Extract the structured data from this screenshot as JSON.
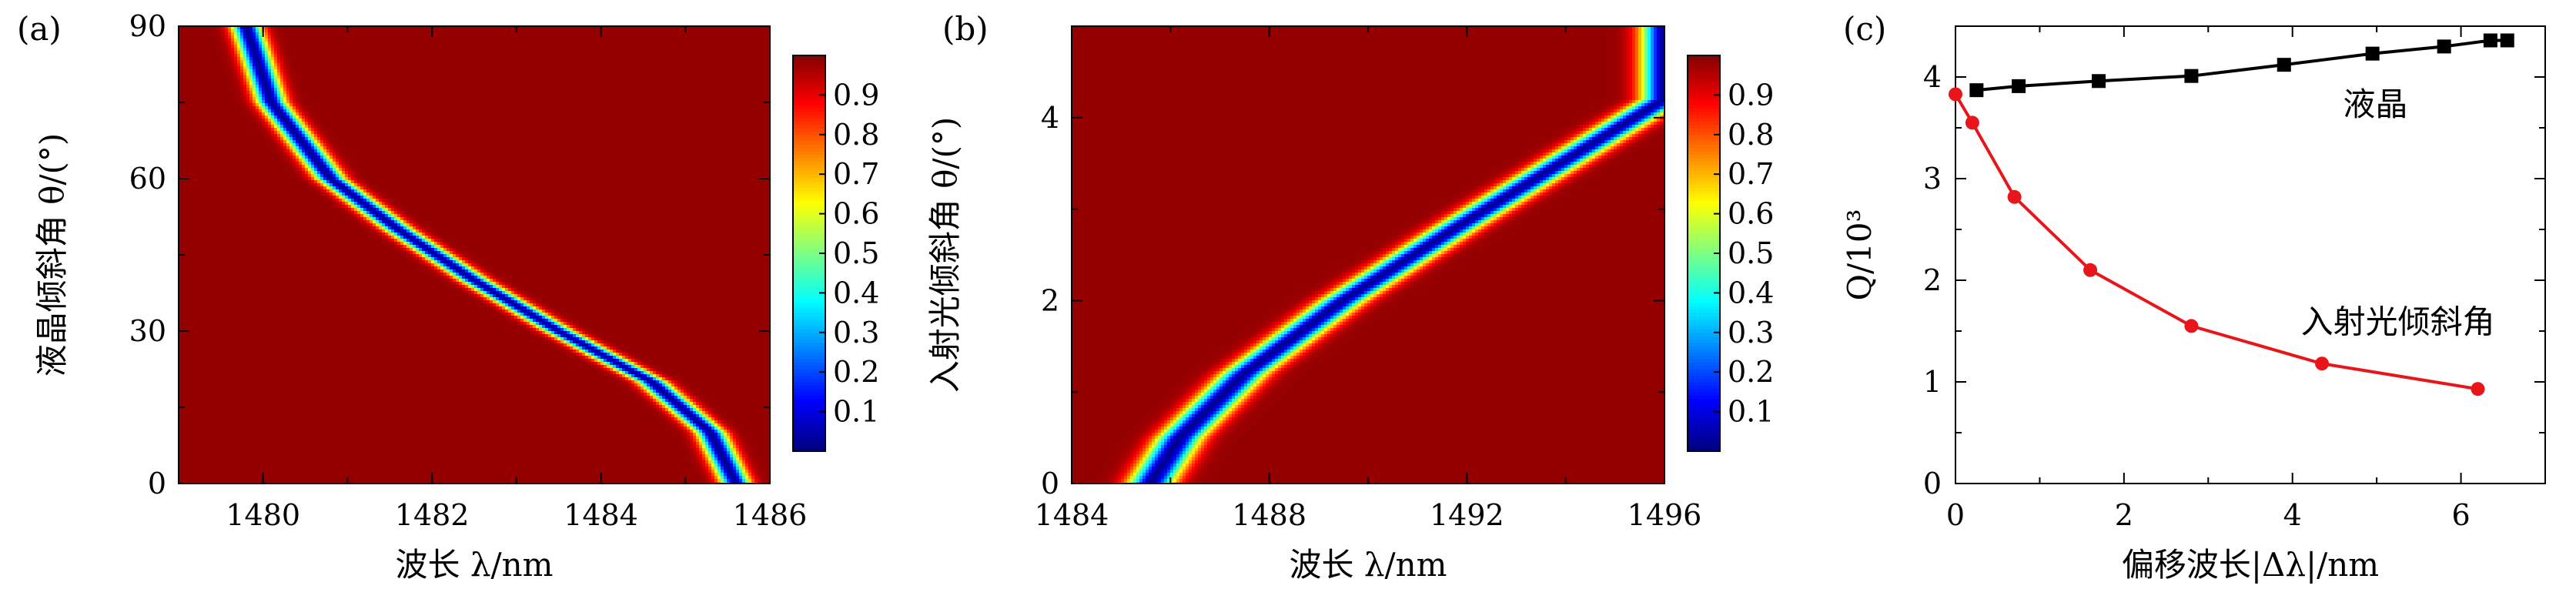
{
  "chart_data": [
    {
      "panel_label": "(a)",
      "type": "heatmap",
      "xlabel": "波长 λ/nm",
      "ylabel": "液晶倾斜角 θ/(°)",
      "xlim": [
        1479,
        1486
      ],
      "ylim": [
        0,
        90
      ],
      "xticks": [
        1480,
        1482,
        1484,
        1486
      ],
      "yticks": [
        0,
        30,
        60,
        90
      ],
      "colorbar_ticks": [
        "0.1",
        "0.2",
        "0.3",
        "0.4",
        "0.5",
        "0.6",
        "0.7",
        "0.8",
        "0.9"
      ],
      "colorbar_range": [
        0,
        1
      ],
      "resonance_curve": {
        "x": [
          1485.6,
          1485.3,
          1484.6,
          1483.5,
          1482.5,
          1481.6,
          1480.8,
          1480.1,
          1479.8
        ],
        "y": [
          0,
          10,
          20,
          30,
          40,
          50,
          60,
          75,
          90
        ]
      },
      "linewidth_nm": 0.17
    },
    {
      "panel_label": "(b)",
      "type": "heatmap",
      "xlabel": "波长 λ/nm",
      "ylabel": "入射光倾斜角 θ/(°)",
      "xlim": [
        1484,
        1496
      ],
      "ylim": [
        0,
        5
      ],
      "xticks": [
        1484,
        1488,
        1492,
        1496
      ],
      "yticks": [
        0,
        2,
        4
      ],
      "colorbar_ticks": [
        "0.1",
        "0.2",
        "0.3",
        "0.4",
        "0.5",
        "0.6",
        "0.7",
        "0.8",
        "0.9"
      ],
      "colorbar_range": [
        0,
        1
      ],
      "resonance_curve": {
        "x": [
          1485.6,
          1486.2,
          1487.5,
          1489.5,
          1491.8,
          1494.2,
          1496.0
        ],
        "y": [
          0,
          0.5,
          1.2,
          2.0,
          2.8,
          3.6,
          4.2
        ]
      },
      "linewidth_nm": 0.45
    },
    {
      "panel_label": "(c)",
      "type": "line",
      "xlabel": "偏移波长|Δλ|/nm",
      "ylabel": "Q/10³",
      "xlim": [
        0,
        7
      ],
      "ylim": [
        0,
        4.5
      ],
      "xticks": [
        0,
        2,
        4,
        6
      ],
      "yticks": [
        0,
        1,
        2,
        3,
        4
      ],
      "series": [
        {
          "name": "液晶",
          "color": "#000000",
          "marker": "square",
          "x": [
            0.25,
            0.75,
            1.7,
            2.8,
            3.9,
            4.95,
            5.8,
            6.35,
            6.55
          ],
          "y": [
            3.87,
            3.91,
            3.96,
            4.01,
            4.12,
            4.23,
            4.3,
            4.36,
            4.36
          ]
        },
        {
          "name": "入射光倾斜角",
          "color": "#e8161b",
          "marker": "circle",
          "x": [
            0,
            0.2,
            0.7,
            1.6,
            2.8,
            4.35,
            6.2
          ],
          "y": [
            3.83,
            3.55,
            2.82,
            2.1,
            1.55,
            1.18,
            0.93
          ]
        }
      ]
    }
  ]
}
